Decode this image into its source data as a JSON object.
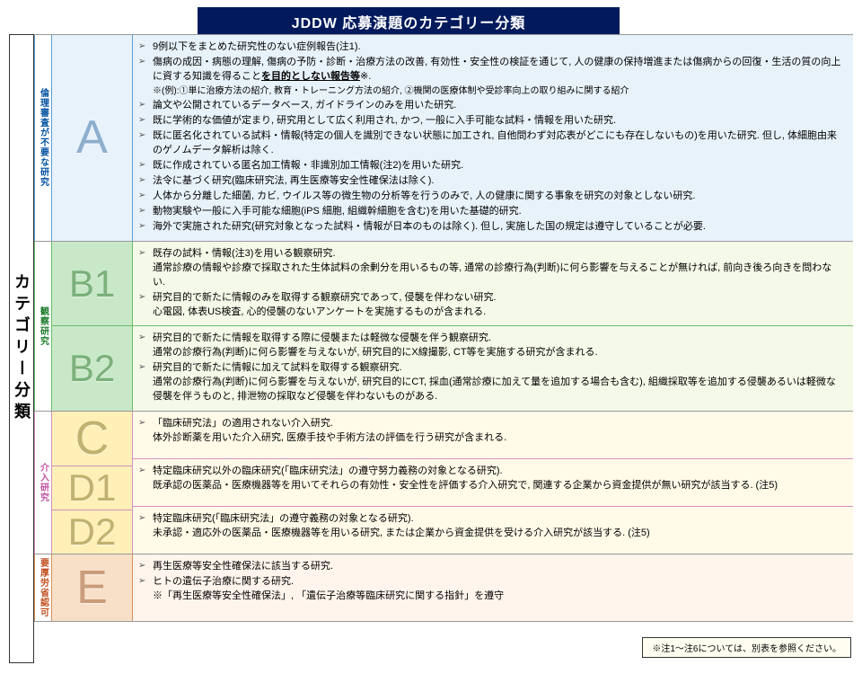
{
  "title": "JDDW 応募演題のカテゴリー分類",
  "leftTitle": "カテゴリー分類",
  "sectionA": {
    "vlabel": "倫理審査が不要な研究",
    "letter": "A",
    "items": [
      "9例以下をまとめた研究性のない症例報告(注1).",
      "傷病の成因・病態の理解, 傷病の予防・診断・治療方法の改善, 有効性・安全性の検証を通じて, 人の健康の保持増進または傷病からの回復・生活の質の向上に資する知識を得ること",
      "論文や公開されているデータベース, ガイドラインのみを用いた研究.",
      "既に学術的な価値が定まり, 研究用として広く利用され, かつ, 一般に入手可能な試料・情報を用いた研究.",
      "既に匿名化されている試料・情報(特定の個人を識別できない状態に加工され, 自他問わず対応表がどこにも存在しないもの)を用いた研究. 但し, 体細胞由来のゲノムデータ解析は除く.",
      "既に作成されている匿名加工情報・非識別加工情報(注2)を用いた研究.",
      "法令に基づく研究(臨床研究法, 再生医療等安全性確保法は除く).",
      "人体から分離した細菌, カビ, ウイルス等の微生物の分析等を行うのみで, 人の健康に関する事象を研究の対象としない研究.",
      "動物実験や一般に入手可能な細胞(iPS 細胞, 組織幹細胞を含む)を用いた基礎的研究.",
      "海外で実施された研究(研究対象となった試料・情報が日本のものは除く). 但し, 実施した国の規定は遵守していることが必要."
    ],
    "underlineSuffix": "を目的としない報告等",
    "note": "※(例):①単に治療方法の紹介, 教育・トレーニング方法の紹介, ②機関の医療体制や受診率向上の取り組みに関する紹介"
  },
  "sectionB": {
    "vlabel": "観察研究",
    "b1": {
      "letter": "B1",
      "items": [
        "既存の試料・情報(注3)を用いる観察研究.\n通常診療の情報や診療で採取された生体試料の余剰分を用いるもの等, 通常の診療行為(判断)に何ら影響を与えることが無ければ, 前向き後ろ向きを問わない.",
        "研究目的で新たに情報のみを取得する観察研究であって, 侵襲を伴わない研究.\n心電図, 体表US検査, 心的侵襲のないアンケートを実施するものが含まれる."
      ]
    },
    "b2": {
      "letter": "B2",
      "items": [
        "研究目的で新たに情報を取得する際に侵襲または軽微な侵襲を伴う観察研究.\n通常の診療行為(判断)に何ら影響を与えないが, 研究目的にX線撮影, CT等を実施する研究が含まれる.",
        "研究目的で新たに情報に加えて試料を取得する観察研究.\n通常の診療行為(判断)に何ら影響を与えないが, 研究目的にCT, 採血(通常診療に加えて量を追加する場合も含む), 組織採取等を追加する侵襲あるいは軽微な侵襲を伴うものと, 排泄物の採取など侵襲を伴わないものがある."
      ]
    }
  },
  "sectionC": {
    "vlabel": "介入研究",
    "c": {
      "letter": "C",
      "items": [
        "「臨床研究法」の適用されない介入研究.\n体外診断薬を用いた介入研究, 医療手技や手術方法の評価を行う研究が含まれる."
      ]
    },
    "d1": {
      "letter": "D1",
      "items": [
        "特定臨床研究以外の臨床研究(「臨床研究法」の遵守努力義務の対象となる研究).\n既承認の医薬品・医療機器等を用いてそれらの有効性・安全性を評価する介入研究で, 関連する企業から資金提供が無い研究が該当する. (注5)"
      ]
    },
    "d2": {
      "letter": "D2",
      "items": [
        "特定臨床研究(「臨床研究法」の遵守義務の対象となる研究).\n未承認・適応外の医薬品・医療機器等を用いる研究, または企業から資金提供を受ける介入研究が該当する. (注5)"
      ]
    }
  },
  "sectionE": {
    "vlabel": "要厚労省認可",
    "letter": "E",
    "items": [
      "再生医療等安全性確保法に該当する研究.",
      "ヒトの遺伝子治療に関する研究.\n※「再生医療等安全性確保法」, 「遺伝子治療等臨床研究に関する指針」を遵守"
    ]
  },
  "footnote": "※注1～注6については、別表を参照ください。"
}
